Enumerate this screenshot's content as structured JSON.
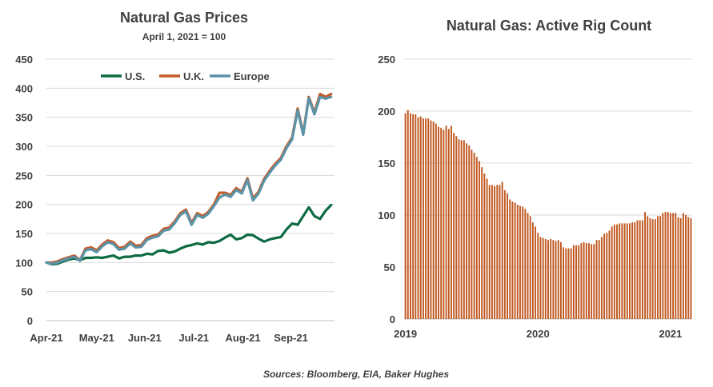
{
  "source_note": "Sources: Bloomberg, EIA, Baker Hughes",
  "colors": {
    "us": "#0e6b43",
    "uk": "#c55a28",
    "europe": "#5b93a8",
    "rig_bar": "#c0571f",
    "grid": "#d9d9d9",
    "axis": "#bfbfbf",
    "text": "#404040"
  },
  "chart_data": [
    {
      "type": "line",
      "title": "Natural Gas Prices",
      "subtitle": "April 1, 2021 = 100",
      "ylim": [
        0,
        450
      ],
      "yticks": [
        0,
        50,
        100,
        150,
        200,
        250,
        300,
        350,
        400,
        450
      ],
      "xlim": [
        0,
        25.8
      ],
      "x_tick_labels": [
        "Apr-21",
        "May-21",
        "Jun-21",
        "Jul-21",
        "Aug-21",
        "Sep-21"
      ],
      "x_tick_positions": [
        0,
        4.5,
        8.8,
        13.2,
        17.6,
        21.9
      ],
      "grid": "horizontal",
      "legend_position": "top",
      "x": [
        0,
        0.5,
        1,
        1.5,
        2,
        2.5,
        3,
        3.5,
        4,
        4.5,
        5,
        5.5,
        6,
        6.5,
        7,
        7.5,
        8,
        8.5,
        9,
        9.5,
        10,
        10.5,
        11,
        11.5,
        12,
        12.5,
        13,
        13.5,
        14,
        14.5,
        15,
        15.5,
        16,
        16.5,
        17,
        17.5,
        18,
        18.5,
        19,
        19.5,
        20,
        20.5,
        21,
        21.5,
        22,
        22.5,
        23,
        23.5,
        24,
        24.5,
        25,
        25.5
      ],
      "series": [
        {
          "name": "U.S.",
          "color_key": "us",
          "values": [
            100,
            97,
            98,
            102,
            105,
            107,
            104,
            108,
            108,
            109,
            108,
            110,
            112,
            107,
            110,
            110,
            112,
            112,
            115,
            114,
            120,
            121,
            117,
            119,
            124,
            128,
            130,
            133,
            131,
            135,
            134,
            137,
            143,
            148,
            140,
            142,
            148,
            147,
            141,
            136,
            140,
            142,
            144,
            157,
            167,
            165,
            180,
            195,
            180,
            175,
            189,
            199
          ]
        },
        {
          "name": "U.K.",
          "color_key": "uk",
          "values": [
            100,
            100,
            102,
            106,
            109,
            112,
            104,
            124,
            126,
            121,
            131,
            138,
            135,
            125,
            127,
            136,
            129,
            130,
            142,
            146,
            148,
            158,
            160,
            171,
            185,
            191,
            168,
            185,
            180,
            187,
            200,
            220,
            220,
            216,
            228,
            222,
            245,
            210,
            222,
            244,
            258,
            270,
            280,
            300,
            315,
            365,
            322,
            385,
            358,
            390,
            385,
            390
          ]
        },
        {
          "name": "Europe",
          "color_key": "europe",
          "values": [
            100,
            98,
            100,
            104,
            107,
            110,
            103,
            121,
            123,
            118,
            128,
            135,
            132,
            122,
            124,
            133,
            126,
            127,
            139,
            143,
            145,
            155,
            157,
            168,
            182,
            188,
            165,
            182,
            177,
            184,
            197,
            212,
            217,
            213,
            225,
            219,
            242,
            207,
            219,
            241,
            255,
            267,
            277,
            297,
            312,
            362,
            320,
            383,
            355,
            385,
            382,
            385
          ]
        }
      ]
    },
    {
      "type": "bar",
      "title": "Natural Gas: Active Rig Count",
      "ylim": [
        0,
        250
      ],
      "yticks": [
        0,
        50,
        100,
        150,
        200,
        250
      ],
      "x_tick_labels": [
        "2019",
        "2020",
        "2021"
      ],
      "x_tick_week_index": [
        0,
        52,
        104
      ],
      "start_year": 2019,
      "weeks_per_year": 52,
      "grid": "horizontal",
      "values": [
        198,
        201,
        198,
        197,
        197,
        194,
        195,
        193,
        193,
        193,
        191,
        190,
        188,
        185,
        184,
        182,
        186,
        183,
        186,
        179,
        176,
        173,
        172,
        172,
        169,
        167,
        163,
        160,
        156,
        152,
        146,
        140,
        135,
        129,
        129,
        128,
        129,
        129,
        132,
        124,
        121,
        115,
        113,
        112,
        110,
        109,
        108,
        106,
        102,
        99,
        93,
        89,
        83,
        79,
        78,
        77,
        76,
        77,
        76,
        75,
        76,
        74,
        69,
        68,
        68,
        68,
        71,
        71,
        71,
        73,
        74,
        73,
        73,
        72,
        72,
        76,
        76,
        79,
        82,
        83,
        85,
        89,
        91,
        91,
        92,
        92,
        92,
        92,
        92,
        93,
        93,
        95,
        95,
        95,
        103,
        99,
        97,
        96,
        96,
        99,
        99,
        102,
        103,
        103,
        102,
        102,
        102,
        98,
        97,
        102,
        100,
        98,
        97
      ]
    }
  ]
}
